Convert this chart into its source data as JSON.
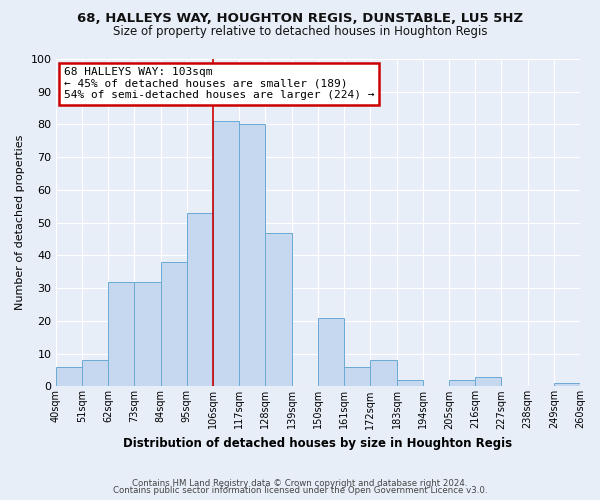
{
  "title": "68, HALLEYS WAY, HOUGHTON REGIS, DUNSTABLE, LU5 5HZ",
  "subtitle": "Size of property relative to detached houses in Houghton Regis",
  "xlabel": "Distribution of detached houses by size in Houghton Regis",
  "ylabel": "Number of detached properties",
  "bar_heights": [
    6,
    8,
    32,
    32,
    38,
    53,
    81,
    80,
    47,
    0,
    21,
    6,
    8,
    2,
    0,
    2,
    3,
    0,
    0,
    1
  ],
  "bin_left_edges": [
    34.5,
    45.5,
    56.5,
    67.5,
    78.5,
    89.5,
    100.5,
    111.5,
    122.5,
    133.5,
    144.5,
    155.5,
    166.5,
    177.5,
    188.5,
    199.5,
    210.5,
    221.5,
    232.5,
    243.5
  ],
  "bin_width": 11,
  "tick_positions": [
    34.5,
    45.5,
    56.5,
    67.5,
    78.5,
    89.5,
    100.5,
    111.5,
    122.5,
    133.5,
    144.5,
    155.5,
    166.5,
    177.5,
    188.5,
    199.5,
    210.5,
    221.5,
    232.5,
    243.5,
    254.5
  ],
  "tick_labels": [
    "40sqm",
    "51sqm",
    "62sqm",
    "73sqm",
    "84sqm",
    "95sqm",
    "106sqm",
    "117sqm",
    "128sqm",
    "139sqm",
    "150sqm",
    "161sqm",
    "172sqm",
    "183sqm",
    "194sqm",
    "205sqm",
    "216sqm",
    "227sqm",
    "238sqm",
    "249sqm",
    "260sqm"
  ],
  "bar_color": "#c5d8f0",
  "bar_edge_color": "#6aaad4",
  "vline_x": 100.5,
  "vline_color": "#cc0000",
  "annotation_title": "68 HALLEYS WAY: 103sqm",
  "annotation_line1": "← 45% of detached houses are smaller (189)",
  "annotation_line2": "54% of semi-detached houses are larger (224) →",
  "annotation_box_color": "#ffffff",
  "annotation_box_edge": "#cc0000",
  "ylim": [
    0,
    100
  ],
  "yticks": [
    0,
    10,
    20,
    30,
    40,
    50,
    60,
    70,
    80,
    90,
    100
  ],
  "footer1": "Contains HM Land Registry data © Crown copyright and database right 2024.",
  "footer2": "Contains public sector information licensed under the Open Government Licence v3.0.",
  "bg_color": "#e8eef8",
  "grid_color": "#ffffff",
  "grid_linewidth": 0.8
}
